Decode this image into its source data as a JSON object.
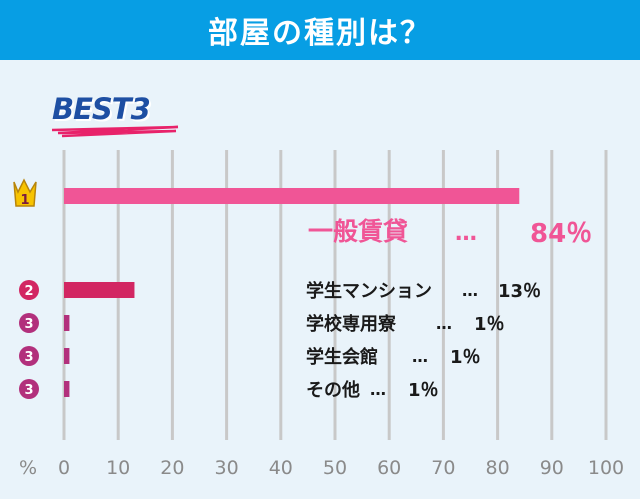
{
  "header": {
    "title": "部屋の種別は？"
  },
  "badge": {
    "text": "BEST3"
  },
  "colors": {
    "header_bg": "#079ee4",
    "background": "#e9f3fa",
    "bar_first": "#f05596",
    "bar_second": "#d22662",
    "bar_third": "#b2307c",
    "gridline": "#c8c8c8",
    "label_first": "#f05596",
    "rank_badge": "#b2307c",
    "crown": "#f7c300"
  },
  "chart_data": {
    "type": "bar",
    "orientation": "horizontal",
    "xlim": [
      0,
      100
    ],
    "x_unit_label": "%",
    "ticks": [
      0,
      10,
      20,
      30,
      40,
      50,
      60,
      70,
      80,
      90,
      100
    ],
    "tick_labels": [
      "0",
      "10",
      "20",
      "30",
      "40",
      "50",
      "60",
      "70",
      "80",
      "90",
      "100"
    ],
    "grid": true,
    "series": [
      {
        "values": [
          84,
          13,
          1,
          1,
          1
        ]
      }
    ],
    "categories": [
      "一般賃貸",
      "学生マンション",
      "学校専用寮",
      "学生会館",
      "その他"
    ],
    "ranks": [
      "1",
      "2",
      "3",
      "3",
      "3"
    ],
    "separator": "…",
    "value_labels": [
      "84％",
      "13％",
      "1％",
      "1％",
      "1％"
    ]
  }
}
